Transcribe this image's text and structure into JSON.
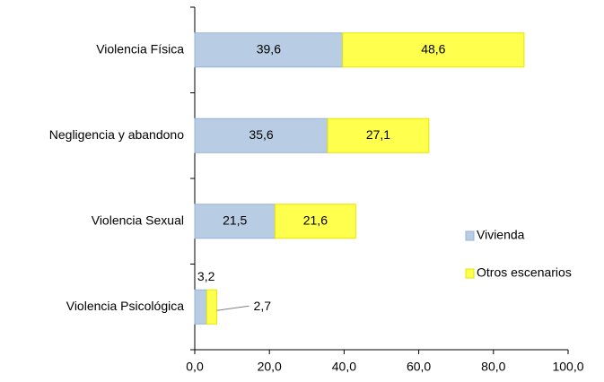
{
  "chart_data": {
    "type": "stacked-bar-horizontal",
    "categories": [
      "Violencia Física",
      "Negligencia y abandono",
      "Violencia Sexual",
      "Violencia Psicológica"
    ],
    "series": [
      {
        "name": "Vivienda",
        "color": "#b8cce4",
        "values": [
          39.6,
          35.6,
          21.5,
          3.2
        ],
        "value_labels": [
          "39,6",
          "35,6",
          "21,5",
          "3,2"
        ]
      },
      {
        "name": "Otros escenarios",
        "color": "#ffff4d",
        "values": [
          48.6,
          27.1,
          21.6,
          2.7
        ],
        "value_labels": [
          "48,6",
          "27,1",
          "21,6",
          "2,7"
        ]
      }
    ],
    "xlim": [
      0,
      100
    ],
    "xticks": [
      {
        "value": 0,
        "label": "0,0"
      },
      {
        "value": 20,
        "label": "20,0"
      },
      {
        "value": 40,
        "label": "40,0"
      },
      {
        "value": 60,
        "label": "60,0"
      },
      {
        "value": 80,
        "label": "80,0"
      },
      {
        "value": 100,
        "label": "100,0"
      }
    ],
    "legend": "right"
  }
}
